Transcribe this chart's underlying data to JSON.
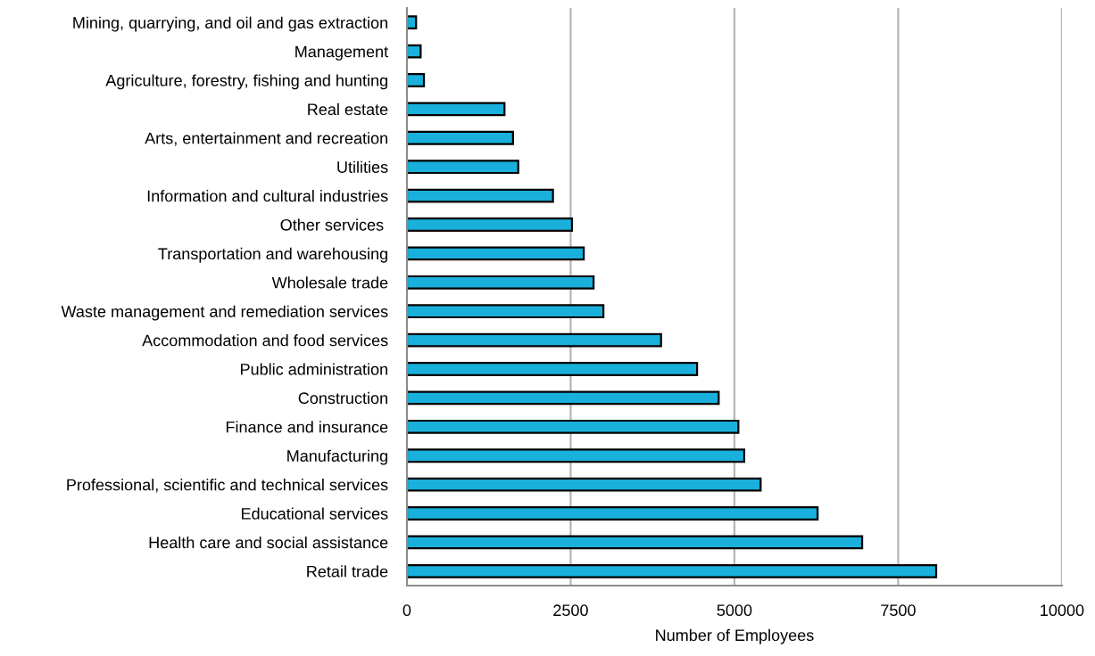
{
  "chart_data": {
    "type": "bar",
    "orientation": "horizontal",
    "categories": [
      "Mining, quarrying, and oil and gas extraction",
      "Management",
      "Agriculture, forestry, fishing and hunting",
      "Real estate",
      "Arts, entertainment and recreation",
      "Utilities",
      "Information and cultural industries",
      "Other services ",
      "Transportation and warehousing",
      "Wholesale trade",
      "Waste management and remediation services",
      "Accommodation and food services",
      "Public administration",
      "Construction",
      "Finance and insurance",
      "Manufacturing",
      "Professional, scientific and technical services",
      "Educational services",
      "Health care and social assistance",
      "Retail trade"
    ],
    "values": [
      140,
      210,
      260,
      1490,
      1620,
      1700,
      2230,
      2520,
      2700,
      2850,
      3000,
      3880,
      4430,
      4760,
      5060,
      5150,
      5400,
      6270,
      6950,
      8080
    ],
    "color": "#1ab0dc",
    "xlabel": "Number of Employees",
    "xlim": [
      0,
      10000
    ],
    "xticks": [
      0,
      2500,
      5000,
      7500,
      10000
    ],
    "grid": "x"
  }
}
